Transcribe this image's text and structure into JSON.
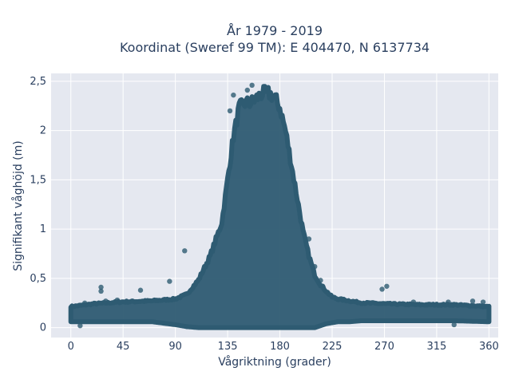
{
  "chart_data": {
    "type": "scatter",
    "title": "År 1979 - 2019",
    "subtitle": "Koordinat (Sweref 99 TM): E 404470, N 6137734",
    "xlabel": "Vågriktning (grader)",
    "ylabel": "Signifikant våghöjd (m)",
    "xlim": [
      -17,
      368
    ],
    "ylim": [
      -0.1,
      2.58
    ],
    "xticks": [
      0,
      45,
      90,
      135,
      180,
      225,
      270,
      315,
      360
    ],
    "xticklabels": [
      "0",
      "45",
      "90",
      "135",
      "180",
      "225",
      "270",
      "315",
      "360"
    ],
    "yticks": [
      0,
      0.5,
      1,
      1.5,
      2,
      2.5
    ],
    "yticklabels": [
      "0",
      "0,5",
      "1",
      "1,5",
      "2",
      "2,5"
    ],
    "grid": true,
    "legend": "none",
    "marker_color": "#2e5b72",
    "background_color": "#e5e8f0",
    "envelope": {
      "direction_deg": [
        0,
        20,
        45,
        70,
        90,
        100,
        110,
        120,
        130,
        135,
        140,
        145,
        150,
        155,
        160,
        165,
        170,
        175,
        180,
        185,
        190,
        195,
        200,
        205,
        210,
        215,
        220,
        225,
        230,
        240,
        250,
        270,
        300,
        330,
        360
      ],
      "max_height_m": [
        0.22,
        0.25,
        0.27,
        0.28,
        0.3,
        0.35,
        0.5,
        0.75,
        1.1,
        1.55,
        2.0,
        2.3,
        2.35,
        2.35,
        2.4,
        2.45,
        2.45,
        2.42,
        2.3,
        2.05,
        1.7,
        1.35,
        1.0,
        0.75,
        0.55,
        0.45,
        0.38,
        0.32,
        0.3,
        0.28,
        0.26,
        0.25,
        0.24,
        0.24,
        0.22
      ],
      "min_height_m": [
        0.06,
        0.06,
        0.06,
        0.06,
        0.03,
        0.01,
        0.0,
        0.0,
        0.0,
        0.0,
        0.0,
        0.0,
        0.0,
        0.0,
        0.0,
        0.0,
        0.0,
        0.0,
        0.0,
        0.0,
        0.0,
        0.0,
        0.0,
        0.0,
        0.0,
        0.02,
        0.04,
        0.05,
        0.06,
        0.06,
        0.07,
        0.07,
        0.07,
        0.07,
        0.06
      ]
    },
    "points": [
      {
        "x": 26,
        "y": 0.41
      },
      {
        "x": 26,
        "y": 0.37
      },
      {
        "x": 60,
        "y": 0.38
      },
      {
        "x": 85,
        "y": 0.47
      },
      {
        "x": 98,
        "y": 0.78
      },
      {
        "x": 140,
        "y": 2.36
      },
      {
        "x": 137,
        "y": 2.2
      },
      {
        "x": 156,
        "y": 2.46
      },
      {
        "x": 152,
        "y": 2.41
      },
      {
        "x": 268,
        "y": 0.39
      },
      {
        "x": 272,
        "y": 0.42
      },
      {
        "x": 8,
        "y": 0.02
      },
      {
        "x": 12,
        "y": 0.25
      },
      {
        "x": 30,
        "y": 0.27
      },
      {
        "x": 40,
        "y": 0.28
      },
      {
        "x": 295,
        "y": 0.26
      },
      {
        "x": 325,
        "y": 0.26
      },
      {
        "x": 346,
        "y": 0.27
      },
      {
        "x": 355,
        "y": 0.26
      },
      {
        "x": 330,
        "y": 0.03
      },
      {
        "x": 100,
        "y": 0.01
      },
      {
        "x": 205,
        "y": 0.9
      },
      {
        "x": 210,
        "y": 0.62
      },
      {
        "x": 215,
        "y": 0.48
      }
    ]
  }
}
